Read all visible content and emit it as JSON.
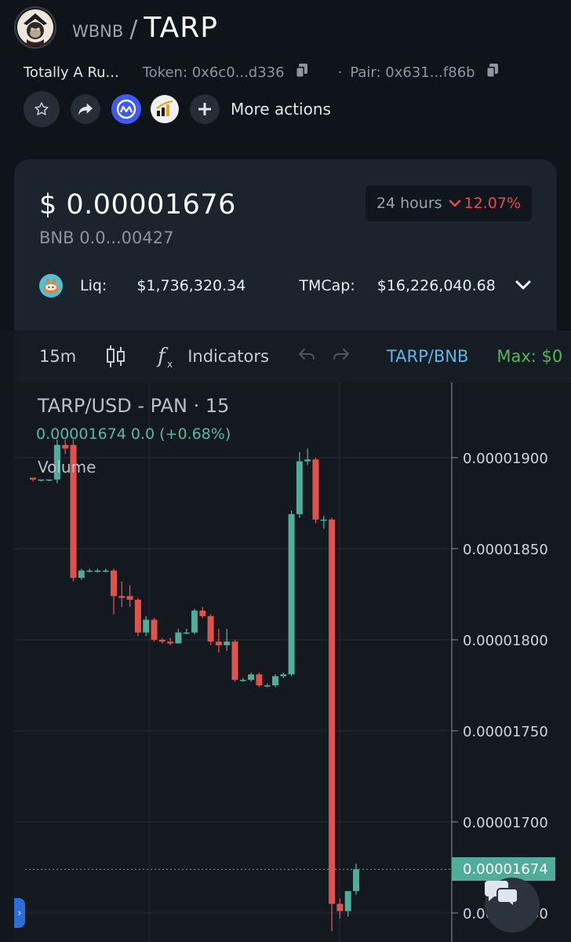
{
  "header": {
    "base_symbol": "WBNB",
    "separator": "/",
    "quote_symbol": "TARP",
    "logo_icon": "samurai-monkey-logo"
  },
  "meta": {
    "token_name": "Totally A Ru...",
    "token_address": "Token: 0x6c0...d336",
    "pair_address": "Pair: 0x631...f86b"
  },
  "actions": {
    "more_actions_label": "More actions"
  },
  "stats": {
    "price_usd": "$ 0.00001676",
    "price_bnb": "BNB  0.0...00427",
    "period": "24 hours",
    "change": "12.07%",
    "change_color": "#e74c4c",
    "liq_label": "Liq:",
    "liq_value": "$1,736,320.34",
    "tmcap_label": "TMCap:",
    "tmcap_value": "$16,226,040.68"
  },
  "toolbar": {
    "timeframe": "15m",
    "indicators_label": "Indicators",
    "pair_link": "TARP/BNB",
    "max_label": "Max: $0"
  },
  "chart": {
    "title": "TARP/USD - PAN · 15",
    "ohlc_line": "0.00001674  0.0  (+0.68%)",
    "volume_label": "Volume",
    "current_price_label": "0.00001674",
    "up_color": "#4fad9a",
    "down_color": "#e0524c"
  },
  "chart_data": {
    "type": "candlestick",
    "title": "TARP/USD - PAN · 15",
    "y_ticks": [
      1.9e-05,
      1.85e-05,
      1.8e-05,
      1.75e-05,
      1.7e-05,
      1.65e-05
    ],
    "y_tick_labels": [
      "0.00001900",
      "0.00001850",
      "0.00001800",
      "0.00001750",
      "0.00001700",
      "0.00001650"
    ],
    "current_price": 1.674e-05,
    "candles": [
      {
        "o": 1.889e-05,
        "h": 1.889e-05,
        "l": 1.887e-05,
        "c": 1.888e-05
      },
      {
        "o": 1.888e-05,
        "h": 1.888e-05,
        "l": 1.887e-05,
        "c": 1.888e-05
      },
      {
        "o": 1.888e-05,
        "h": 1.888e-05,
        "l": 1.887e-05,
        "c": 1.888e-05
      },
      {
        "o": 1.888e-05,
        "h": 1.91e-05,
        "l": 1.886e-05,
        "c": 1.907e-05
      },
      {
        "o": 1.907e-05,
        "h": 1.91e-05,
        "l": 1.902e-05,
        "c": 1.905e-05
      },
      {
        "o": 1.907e-05,
        "h": 1.91e-05,
        "l": 1.832e-05,
        "c": 1.834e-05
      },
      {
        "o": 1.834e-05,
        "h": 1.839e-05,
        "l": 1.833e-05,
        "c": 1.838e-05
      },
      {
        "o": 1.838e-05,
        "h": 1.839e-05,
        "l": 1.837e-05,
        "c": 1.838e-05
      },
      {
        "o": 1.838e-05,
        "h": 1.839e-05,
        "l": 1.837e-05,
        "c": 1.838e-05
      },
      {
        "o": 1.838e-05,
        "h": 1.839e-05,
        "l": 1.837e-05,
        "c": 1.838e-05
      },
      {
        "o": 1.838e-05,
        "h": 1.839e-05,
        "l": 1.814e-05,
        "c": 1.824e-05
      },
      {
        "o": 1.824e-05,
        "h": 1.832e-05,
        "l": 1.818e-05,
        "c": 1.823e-05
      },
      {
        "o": 1.824e-05,
        "h": 1.83e-05,
        "l": 1.818e-05,
        "c": 1.822e-05
      },
      {
        "o": 1.822e-05,
        "h": 1.823e-05,
        "l": 1.802e-05,
        "c": 1.804e-05
      },
      {
        "o": 1.804e-05,
        "h": 1.813e-05,
        "l": 1.802e-05,
        "c": 1.811e-05
      },
      {
        "o": 1.811e-05,
        "h": 1.812e-05,
        "l": 1.799e-05,
        "c": 1.8e-05
      },
      {
        "o": 1.8e-05,
        "h": 1.801e-05,
        "l": 1.798e-05,
        "c": 1.799e-05
      },
      {
        "o": 1.799e-05,
        "h": 1.801e-05,
        "l": 1.797e-05,
        "c": 1.798e-05
      },
      {
        "o": 1.798e-05,
        "h": 1.806e-05,
        "l": 1.798e-05,
        "c": 1.804e-05
      },
      {
        "o": 1.804e-05,
        "h": 1.806e-05,
        "l": 1.803e-05,
        "c": 1.804e-05
      },
      {
        "o": 1.804e-05,
        "h": 1.817e-05,
        "l": 1.803e-05,
        "c": 1.816e-05
      },
      {
        "o": 1.816e-05,
        "h": 1.818e-05,
        "l": 1.812e-05,
        "c": 1.813e-05
      },
      {
        "o": 1.813e-05,
        "h": 1.814e-05,
        "l": 1.797e-05,
        "c": 1.799e-05
      },
      {
        "o": 1.799e-05,
        "h": 1.806e-05,
        "l": 1.793e-05,
        "c": 1.797e-05
      },
      {
        "o": 1.797e-05,
        "h": 1.806e-05,
        "l": 1.794e-05,
        "c": 1.799e-05
      },
      {
        "o": 1.799e-05,
        "h": 1.8e-05,
        "l": 1.777e-05,
        "c": 1.778e-05
      },
      {
        "o": 1.778e-05,
        "h": 1.779e-05,
        "l": 1.777e-05,
        "c": 1.778e-05
      },
      {
        "o": 1.778e-05,
        "h": 1.782e-05,
        "l": 1.777e-05,
        "c": 1.781e-05
      },
      {
        "o": 1.781e-05,
        "h": 1.782e-05,
        "l": 1.774e-05,
        "c": 1.775e-05
      },
      {
        "o": 1.775e-05,
        "h": 1.776e-05,
        "l": 1.774e-05,
        "c": 1.775e-05
      },
      {
        "o": 1.775e-05,
        "h": 1.781e-05,
        "l": 1.774e-05,
        "c": 1.78e-05
      },
      {
        "o": 1.78e-05,
        "h": 1.782e-05,
        "l": 1.779e-05,
        "c": 1.781e-05
      },
      {
        "o": 1.781e-05,
        "h": 1.871e-05,
        "l": 1.78e-05,
        "c": 1.869e-05
      },
      {
        "o": 1.869e-05,
        "h": 1.903e-05,
        "l": 1.867e-05,
        "c": 1.898e-05
      },
      {
        "o": 1.898e-05,
        "h": 1.905e-05,
        "l": 1.896e-05,
        "c": 1.899e-05
      },
      {
        "o": 1.899e-05,
        "h": 1.9e-05,
        "l": 1.864e-05,
        "c": 1.866e-05
      },
      {
        "o": 1.866e-05,
        "h": 1.868e-05,
        "l": 1.861e-05,
        "c": 1.866e-05
      },
      {
        "o": 1.866e-05,
        "h": 1.867e-05,
        "l": 1.64e-05,
        "c": 1.655e-05
      },
      {
        "o": 1.655e-05,
        "h": 1.658e-05,
        "l": 1.647e-05,
        "c": 1.651e-05
      },
      {
        "o": 1.651e-05,
        "h": 1.662e-05,
        "l": 1.648e-05,
        "c": 1.662e-05
      },
      {
        "o": 1.662e-05,
        "h": 1.677e-05,
        "l": 1.66e-05,
        "c": 1.674e-05
      }
    ]
  }
}
